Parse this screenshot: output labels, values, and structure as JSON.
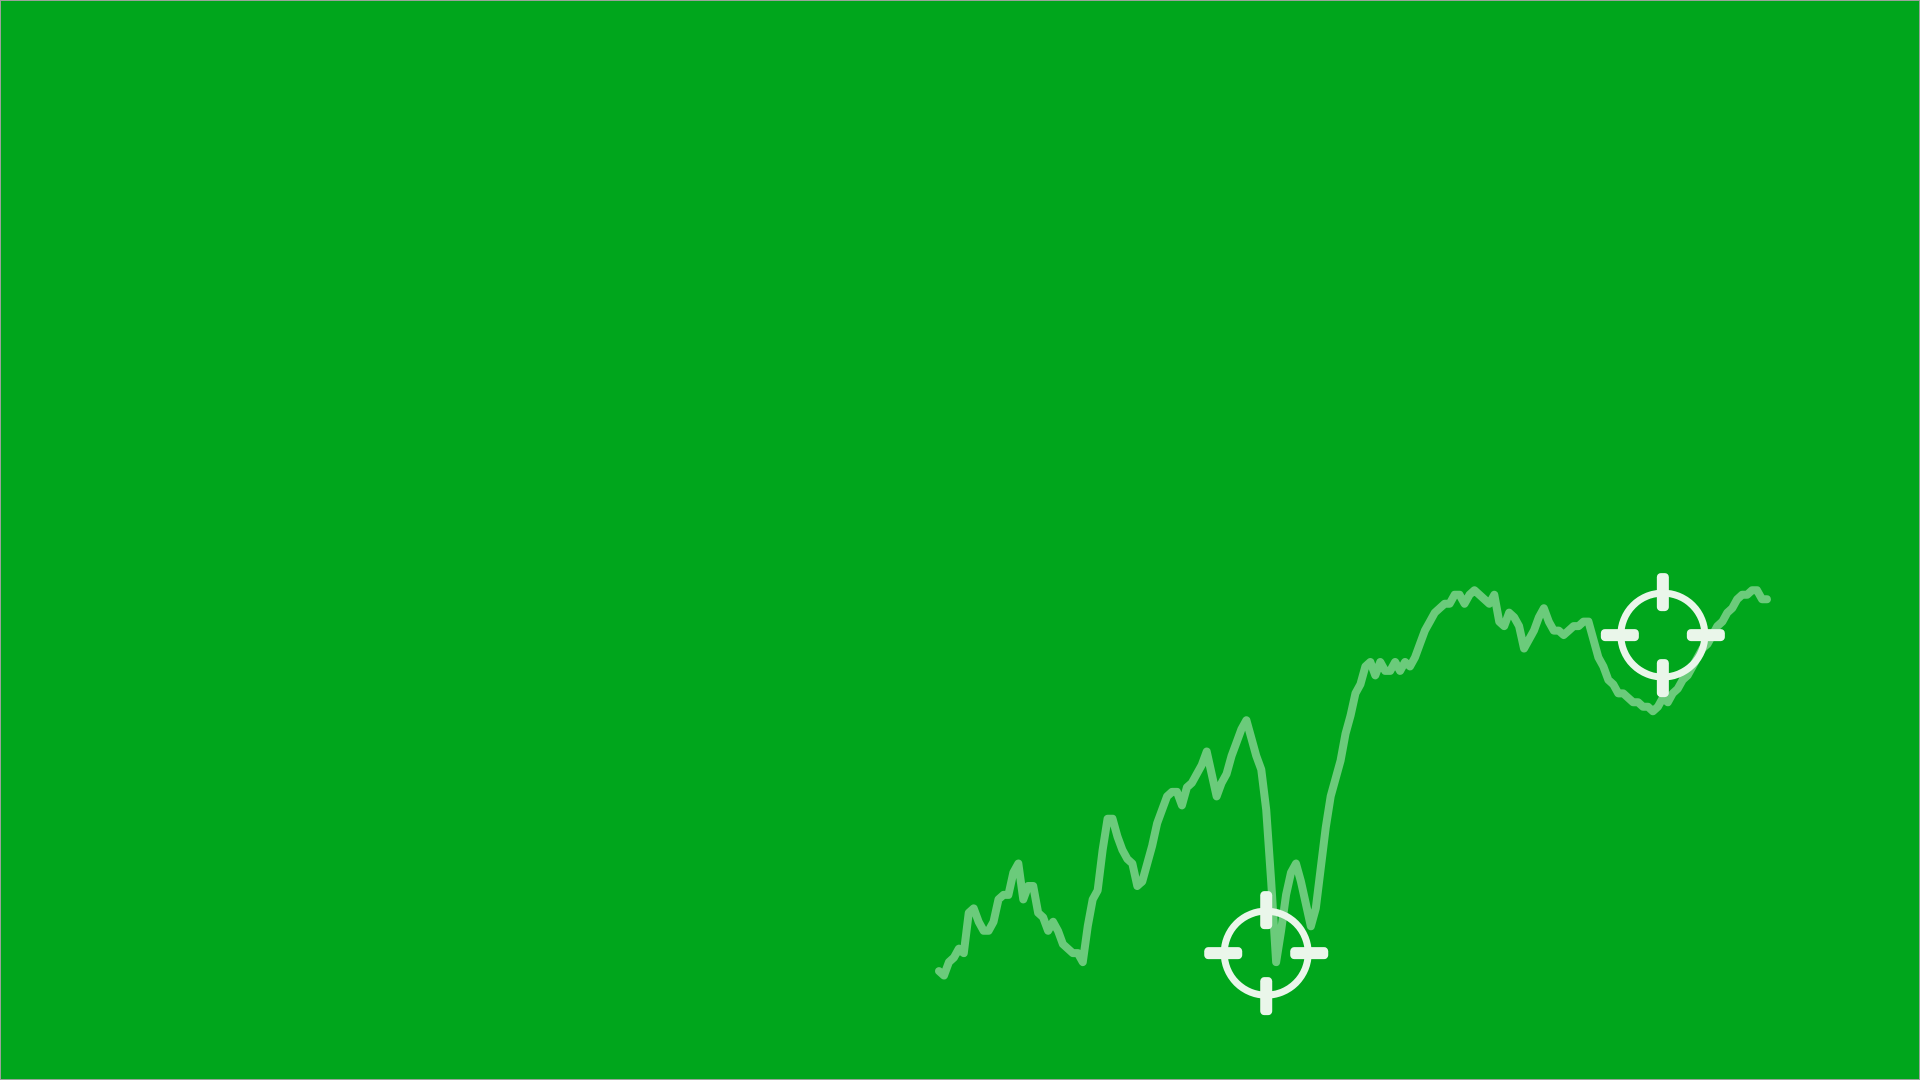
{
  "screen": {
    "background_color": "#00a61c",
    "line_color": "#ffffff",
    "target_color": "#eaf6ea"
  },
  "chart_data": {
    "type": "line",
    "title": "",
    "xlabel": "",
    "ylabel": "",
    "xlim": [
      0,
      190
    ],
    "ylim": [
      0,
      100
    ],
    "grid": false,
    "series": [
      {
        "values": [
          4,
          3,
          6,
          7,
          9,
          8,
          17,
          18,
          15,
          13,
          13,
          15,
          20,
          21,
          21,
          26,
          28,
          20,
          23,
          23,
          17,
          16,
          13,
          15,
          13,
          10,
          9,
          8,
          8,
          6,
          14,
          20,
          22,
          31,
          38,
          38,
          34,
          31,
          29,
          28,
          23,
          24,
          28,
          32,
          37,
          40,
          43,
          44,
          44,
          41,
          45,
          46,
          48,
          50,
          53,
          48,
          43,
          46,
          48,
          52,
          55,
          58,
          60,
          56,
          52,
          49,
          40,
          24,
          6,
          13,
          21,
          26,
          28,
          24,
          19,
          14,
          18,
          27,
          36,
          43,
          47,
          51,
          57,
          61,
          66,
          68,
          72,
          73,
          70,
          73,
          71,
          71,
          73,
          71,
          73,
          72,
          74,
          77,
          80,
          82,
          84,
          85,
          86,
          86,
          88,
          88,
          86,
          88,
          89,
          88,
          87,
          86,
          88,
          82,
          81,
          84,
          83,
          81,
          76,
          78,
          80,
          83,
          85,
          82,
          80,
          80,
          79,
          80,
          81,
          81,
          82,
          82,
          78,
          74,
          72,
          69,
          68,
          66,
          66,
          65,
          64,
          64,
          63,
          63,
          62,
          63,
          65,
          64,
          66,
          67,
          69,
          70,
          72,
          74,
          76,
          77,
          79,
          81,
          82,
          84,
          85,
          87,
          88,
          88,
          89,
          89,
          87,
          87
        ]
      }
    ],
    "annotations": [
      {
        "label": "target-low",
        "x": 66,
        "y": 8
      },
      {
        "label": "target-high",
        "x": 146,
        "y": 79
      }
    ]
  }
}
